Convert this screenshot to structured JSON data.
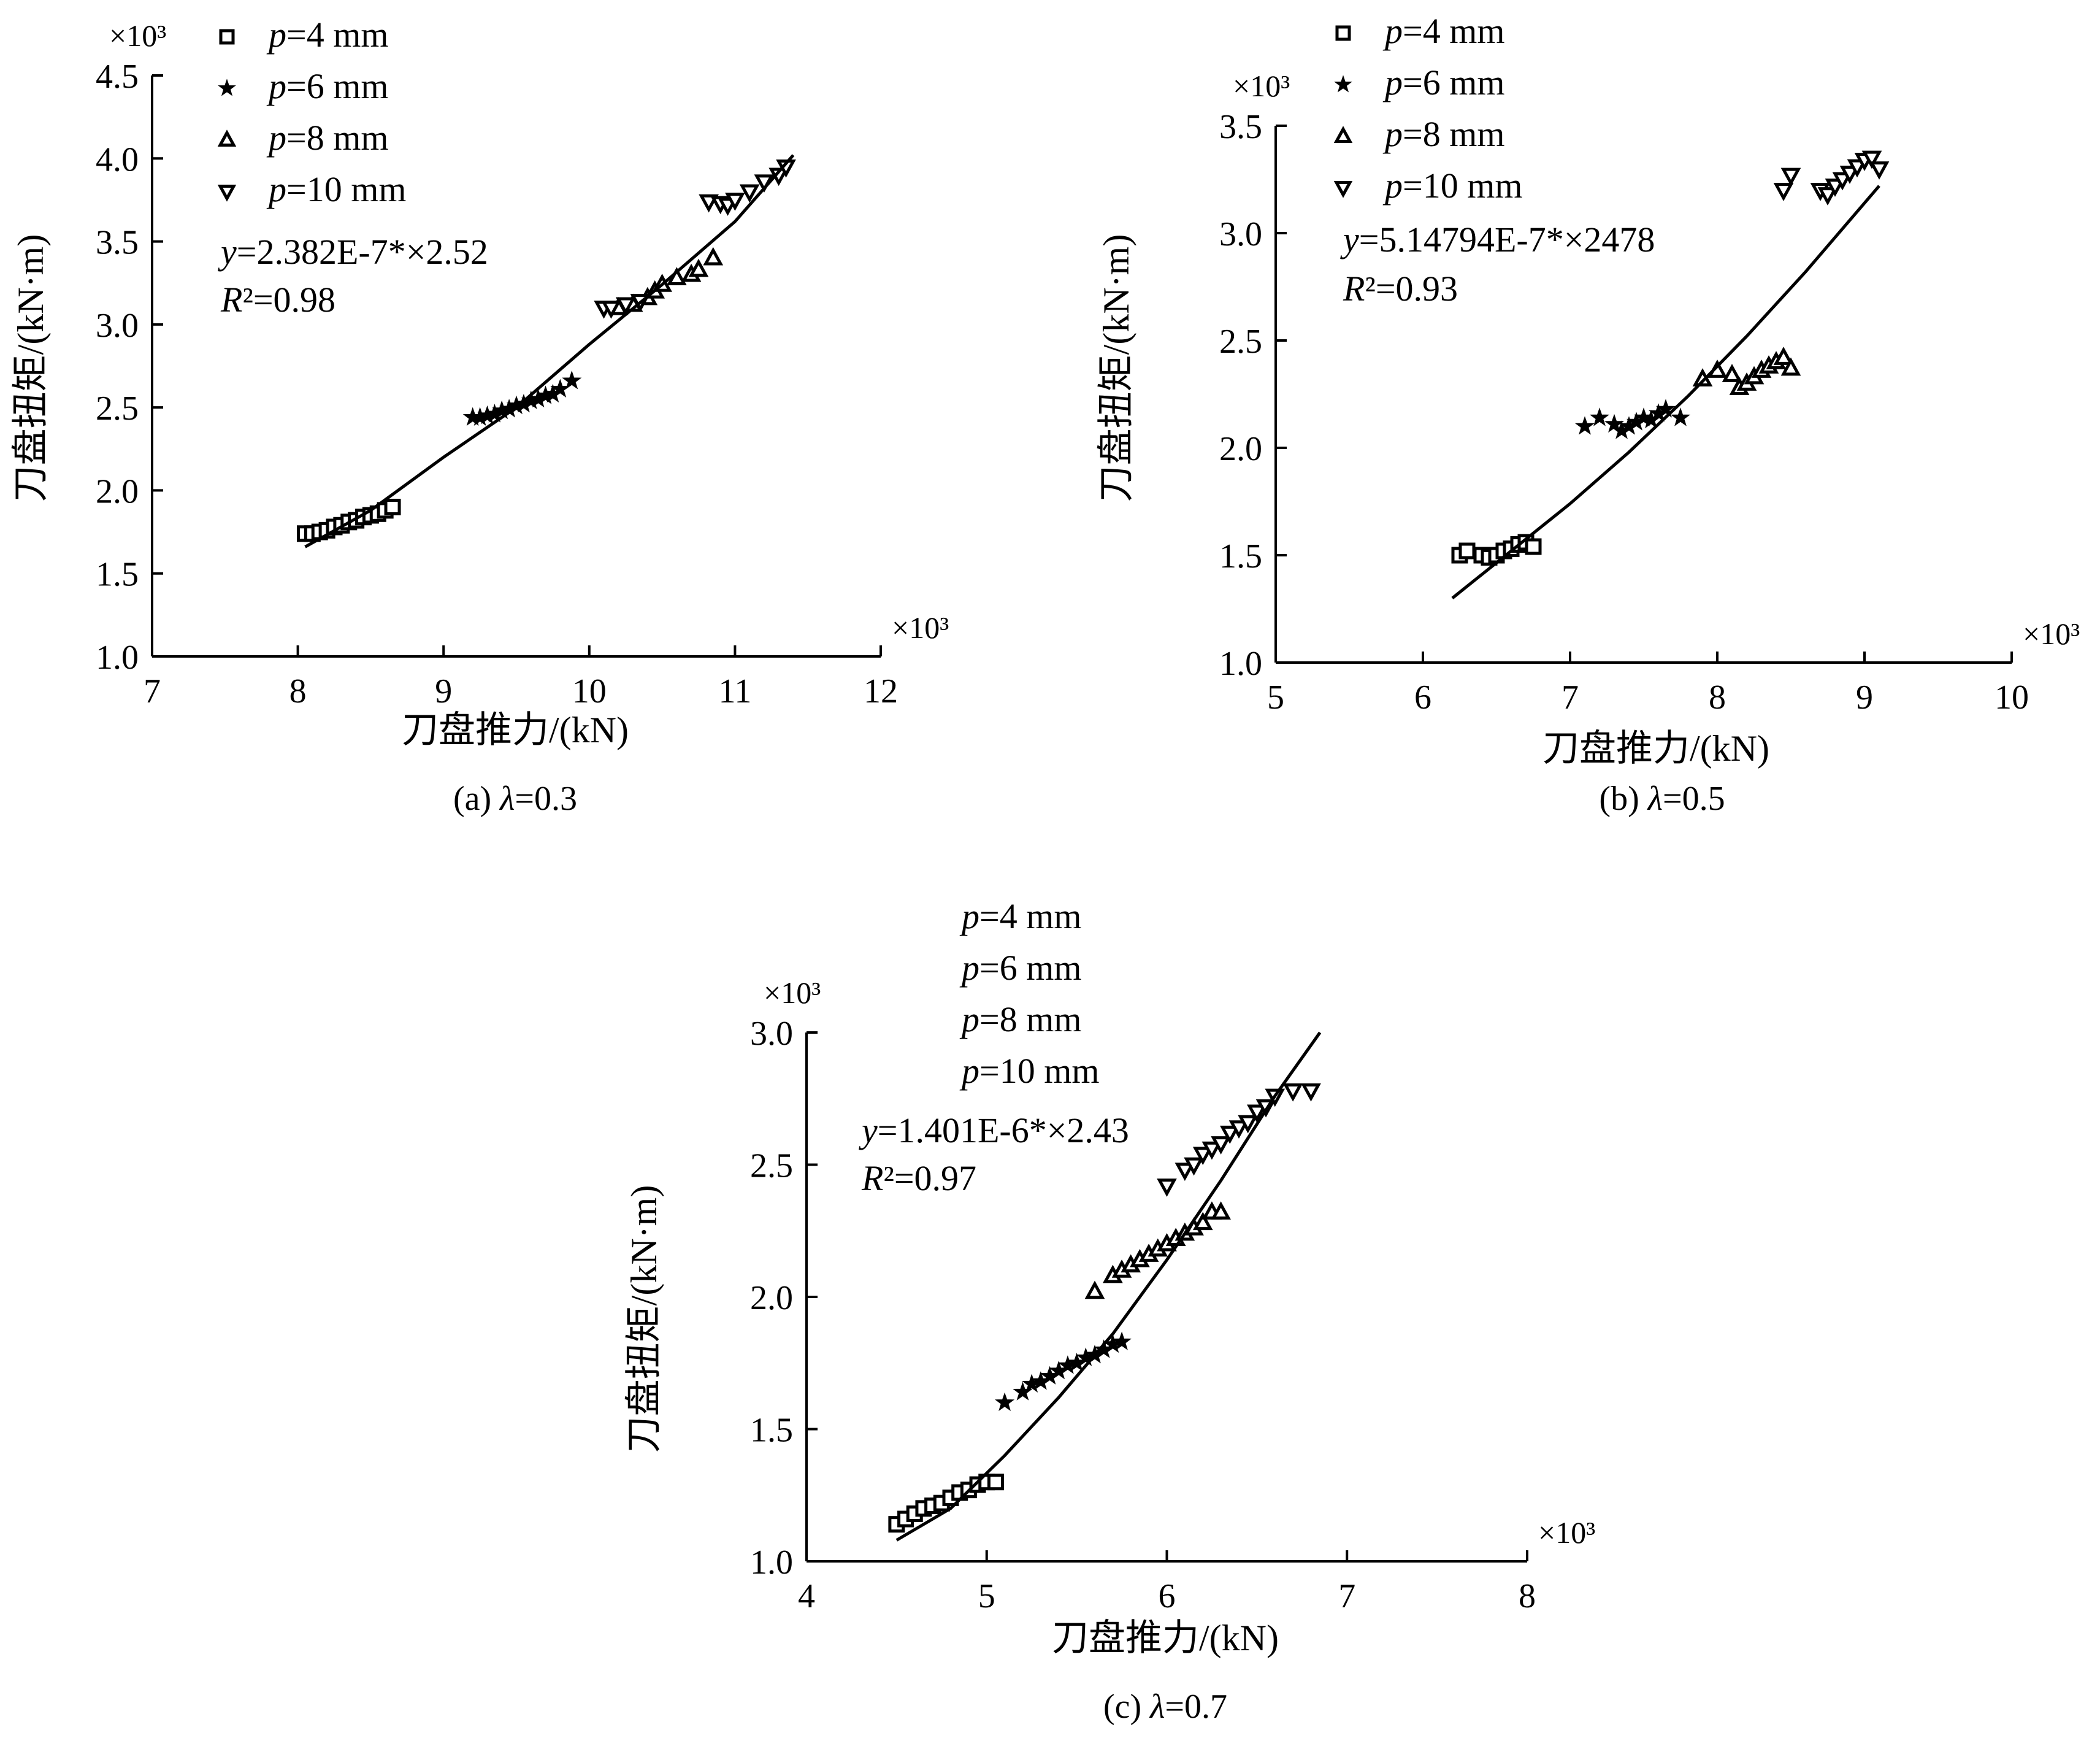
{
  "chart_data": [
    {
      "type": "scatter",
      "panel_caption": "(a) λ=0.3",
      "xlabel": "刀盘推力/(kN)",
      "ylabel": "刀盘扭矩/(kN·m)",
      "x_multiplier": "×10³",
      "y_multiplier": "×10³",
      "xlim": [
        7,
        12
      ],
      "ylim": [
        1.0,
        4.5
      ],
      "xticks": [
        "7",
        "8",
        "9",
        "10",
        "11",
        "12"
      ],
      "yticks": [
        "1.0",
        "1.5",
        "2.0",
        "2.5",
        "3.0",
        "3.5",
        "4.0",
        "4.5"
      ],
      "legend": [
        {
          "label": "p=4 mm",
          "marker": "square"
        },
        {
          "label": "p=6 mm",
          "marker": "star"
        },
        {
          "label": "p=8 mm",
          "marker": "triangle-up"
        },
        {
          "label": "p=10 mm",
          "marker": "triangle-down"
        }
      ],
      "equation": "y=2.382E-7*×2.52",
      "r2": "R²=0.98",
      "series": [
        {
          "name": "p=4 mm",
          "marker": "square",
          "x": [
            8.05,
            8.1,
            8.15,
            8.2,
            8.25,
            8.3,
            8.35,
            8.4,
            8.45,
            8.5,
            8.55,
            8.6,
            8.65
          ],
          "y": [
            1.74,
            1.74,
            1.75,
            1.76,
            1.78,
            1.79,
            1.81,
            1.82,
            1.84,
            1.85,
            1.86,
            1.88,
            1.9
          ]
        },
        {
          "name": "p=6 mm",
          "marker": "star",
          "x": [
            9.2,
            9.25,
            9.3,
            9.35,
            9.4,
            9.45,
            9.5,
            9.55,
            9.6,
            9.65,
            9.7,
            9.75,
            9.8,
            9.88
          ],
          "y": [
            2.44,
            2.44,
            2.45,
            2.46,
            2.48,
            2.49,
            2.51,
            2.52,
            2.54,
            2.55,
            2.57,
            2.58,
            2.61,
            2.66
          ]
        },
        {
          "name": "p=8 mm",
          "marker": "triangle-up",
          "x": [
            10.2,
            10.3,
            10.4,
            10.45,
            10.5,
            10.6,
            10.7,
            10.75,
            10.85
          ],
          "y": [
            3.1,
            3.12,
            3.16,
            3.2,
            3.24,
            3.28,
            3.3,
            3.33,
            3.4
          ]
        },
        {
          "name": "p=10 mm",
          "marker": "triangle-down",
          "x": [
            10.1,
            10.15,
            10.25,
            10.35,
            10.82,
            10.9,
            10.95,
            11.0,
            11.1,
            11.2,
            11.3,
            11.35
          ],
          "y": [
            3.1,
            3.1,
            3.12,
            3.14,
            3.74,
            3.73,
            3.72,
            3.75,
            3.8,
            3.86,
            3.9,
            3.95
          ]
        }
      ],
      "fit": {
        "x": [
          8.05,
          8.5,
          9.0,
          9.5,
          10.0,
          10.5,
          11.0,
          11.4
        ],
        "y": [
          1.66,
          1.88,
          2.2,
          2.5,
          2.88,
          3.24,
          3.62,
          4.02
        ]
      }
    },
    {
      "type": "scatter",
      "panel_caption": "(b) λ=0.5",
      "xlabel": "刀盘推力/(kN)",
      "ylabel": "刀盘扭矩/(kN·m)",
      "x_multiplier": "×10³",
      "y_multiplier": "×10³",
      "xlim": [
        5,
        10
      ],
      "ylim": [
        1.0,
        3.5
      ],
      "xticks": [
        "5",
        "6",
        "7",
        "8",
        "9",
        "10"
      ],
      "yticks": [
        "1.0",
        "1.5",
        "2.0",
        "2.5",
        "3.0",
        "3.5"
      ],
      "legend": [
        {
          "label": "p=4 mm",
          "marker": "square"
        },
        {
          "label": "p=6 mm",
          "marker": "star"
        },
        {
          "label": "p=8 mm",
          "marker": "triangle-up"
        },
        {
          "label": "p=10 mm",
          "marker": "triangle-down"
        }
      ],
      "equation": "y=5.14794E-7*×2478",
      "r2": "R²=0.93",
      "series": [
        {
          "name": "p=4 mm",
          "marker": "square",
          "x": [
            6.25,
            6.3,
            6.4,
            6.45,
            6.5,
            6.55,
            6.6,
            6.65,
            6.7,
            6.75
          ],
          "y": [
            1.5,
            1.52,
            1.5,
            1.49,
            1.5,
            1.52,
            1.53,
            1.55,
            1.56,
            1.54
          ]
        },
        {
          "name": "p=6 mm",
          "marker": "star",
          "x": [
            7.1,
            7.2,
            7.3,
            7.35,
            7.4,
            7.45,
            7.5,
            7.55,
            7.6,
            7.65,
            7.75
          ],
          "y": [
            2.1,
            2.14,
            2.11,
            2.08,
            2.1,
            2.12,
            2.14,
            2.13,
            2.16,
            2.18,
            2.14
          ]
        },
        {
          "name": "p=8 mm",
          "marker": "triangle-up",
          "x": [
            7.9,
            8.0,
            8.1,
            8.15,
            8.2,
            8.25,
            8.3,
            8.35,
            8.4,
            8.45,
            8.5
          ],
          "y": [
            2.32,
            2.36,
            2.34,
            2.28,
            2.3,
            2.33,
            2.36,
            2.38,
            2.4,
            2.42,
            2.37
          ]
        },
        {
          "name": "p=10 mm",
          "marker": "triangle-down",
          "x": [
            8.45,
            8.5,
            8.7,
            8.75,
            8.8,
            8.85,
            8.9,
            8.95,
            9.0,
            9.05,
            9.1
          ],
          "y": [
            3.2,
            3.27,
            3.2,
            3.18,
            3.22,
            3.25,
            3.28,
            3.31,
            3.34,
            3.35,
            3.3
          ]
        }
      ],
      "fit": {
        "x": [
          6.2,
          6.6,
          7.0,
          7.4,
          7.8,
          8.2,
          8.6,
          9.0,
          9.1
        ],
        "y": [
          1.3,
          1.52,
          1.74,
          1.98,
          2.24,
          2.52,
          2.82,
          3.14,
          3.22
        ]
      }
    },
    {
      "type": "scatter",
      "panel_caption": "(c) λ=0.7",
      "xlabel": "刀盘推力/(kN)",
      "ylabel": "刀盘扭矩/(kN·m)",
      "x_multiplier": "×10³",
      "y_multiplier": "×10³",
      "xlim": [
        4,
        8
      ],
      "ylim": [
        1.0,
        3.0
      ],
      "xticks": [
        "4",
        "5",
        "6",
        "7",
        "8"
      ],
      "yticks": [
        "1.0",
        "1.5",
        "2.0",
        "2.5",
        "3.0"
      ],
      "legend": [
        {
          "label": "p=4 mm",
          "marker": "none"
        },
        {
          "label": "p=6 mm",
          "marker": "none"
        },
        {
          "label": "p=8 mm",
          "marker": "none"
        },
        {
          "label": "p=10 mm",
          "marker": "none"
        }
      ],
      "equation": "y=1.401E-6*×2.43",
      "r2": "R²=0.97",
      "series": [
        {
          "name": "p=4 mm",
          "marker": "square",
          "x": [
            4.5,
            4.55,
            4.6,
            4.65,
            4.7,
            4.75,
            4.8,
            4.85,
            4.9,
            4.95,
            5.0,
            5.05
          ],
          "y": [
            1.14,
            1.16,
            1.18,
            1.2,
            1.21,
            1.22,
            1.24,
            1.26,
            1.27,
            1.29,
            1.3,
            1.3
          ]
        },
        {
          "name": "p=6 mm",
          "marker": "star",
          "x": [
            5.1,
            5.2,
            5.25,
            5.3,
            5.35,
            5.4,
            5.45,
            5.5,
            5.55,
            5.6,
            5.65,
            5.7,
            5.75
          ],
          "y": [
            1.6,
            1.64,
            1.67,
            1.68,
            1.7,
            1.72,
            1.74,
            1.75,
            1.77,
            1.78,
            1.8,
            1.82,
            1.83
          ]
        },
        {
          "name": "p=8 mm",
          "marker": "triangle-up",
          "x": [
            5.6,
            5.7,
            5.75,
            5.8,
            5.85,
            5.9,
            5.95,
            6.0,
            6.05,
            6.1,
            6.15,
            6.2,
            6.25,
            6.3
          ],
          "y": [
            2.02,
            2.08,
            2.1,
            2.12,
            2.14,
            2.16,
            2.18,
            2.2,
            2.22,
            2.24,
            2.26,
            2.28,
            2.32,
            2.32
          ]
        },
        {
          "name": "p=10 mm",
          "marker": "triangle-down",
          "x": [
            6.0,
            6.1,
            6.15,
            6.2,
            6.25,
            6.3,
            6.35,
            6.4,
            6.45,
            6.5,
            6.55,
            6.6,
            6.7,
            6.8
          ],
          "y": [
            2.42,
            2.48,
            2.5,
            2.54,
            2.56,
            2.58,
            2.62,
            2.64,
            2.66,
            2.7,
            2.72,
            2.76,
            2.78,
            2.78
          ]
        }
      ],
      "fit": {
        "x": [
          4.5,
          4.8,
          5.1,
          5.4,
          5.7,
          6.0,
          6.3,
          6.6,
          6.85
        ],
        "y": [
          1.08,
          1.2,
          1.4,
          1.62,
          1.86,
          2.14,
          2.44,
          2.76,
          3.0
        ]
      }
    }
  ]
}
